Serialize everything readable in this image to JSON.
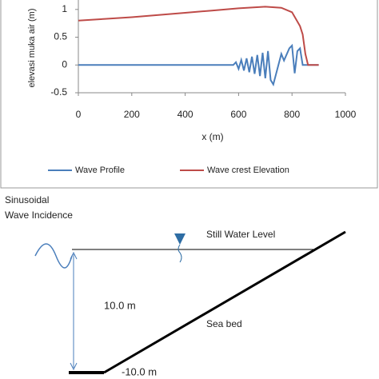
{
  "chart_data": {
    "type": "line",
    "y_label": "elevasi muka air (m)",
    "x_label": "x (m)",
    "xlim": [
      0,
      1000
    ],
    "xticks": [
      0,
      200,
      400,
      600,
      800,
      1000
    ],
    "ylim": [
      -0.5,
      1.17
    ],
    "yticks": [
      -0.5,
      0,
      0.5,
      1
    ],
    "series": [
      {
        "name": "Wave Profile",
        "color": "#4a7ebb",
        "x": [
          0,
          580,
          590,
          600,
          610,
          620,
          630,
          640,
          650,
          660,
          670,
          680,
          690,
          700,
          710,
          720,
          730,
          760,
          770,
          790,
          800,
          810,
          820,
          830,
          840,
          850,
          900
        ],
        "values": [
          0,
          0,
          0.05,
          -0.07,
          0.09,
          -0.1,
          0.12,
          -0.13,
          0.15,
          -0.16,
          0.18,
          -0.2,
          0.22,
          -0.24,
          0.25,
          -0.27,
          -0.35,
          0.2,
          0.08,
          0.3,
          0.35,
          -0.15,
          0.25,
          0.3,
          0,
          0,
          0
        ]
      },
      {
        "name": "Wave crest Elevation",
        "color": "#be4b48",
        "x": [
          0,
          100,
          200,
          300,
          400,
          500,
          600,
          700,
          760,
          800,
          830,
          840,
          850,
          860,
          900
        ],
        "values": [
          0.8,
          0.83,
          0.86,
          0.9,
          0.94,
          0.98,
          1.02,
          1.05,
          1.03,
          0.95,
          0.7,
          0.55,
          0.2,
          0,
          0
        ]
      }
    ]
  },
  "diagram": {
    "incidence": [
      "Sinusoidal",
      "Wave Incidence"
    ],
    "water_level": "Still Water Level",
    "depth": "10.0 m",
    "bed": "Sea bed",
    "bottom": "-10.0 m"
  }
}
